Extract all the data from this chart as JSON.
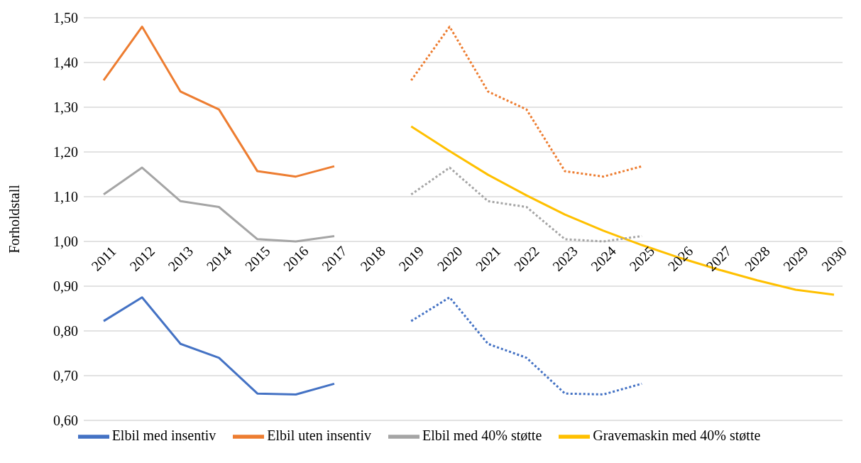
{
  "chart_data": {
    "type": "line",
    "ylabel": "Forholdstall",
    "categories": [
      "2011",
      "2012",
      "2013",
      "2014",
      "2015",
      "2016",
      "2017",
      "2018",
      "2019",
      "2020",
      "2021",
      "2022",
      "2023",
      "2024",
      "2025",
      "2026",
      "2027",
      "2028",
      "2029",
      "2030"
    ],
    "series": [
      {
        "name": "Elbil med insentiv",
        "color": "#4472c4",
        "values": [
          0.822,
          0.875,
          0.771,
          0.74,
          0.66,
          0.658,
          0.682,
          null,
          null,
          null,
          null,
          null,
          null,
          null,
          null,
          null,
          null,
          null,
          null,
          null
        ]
      },
      {
        "name": "Elbil uten insentiv",
        "color": "#ed7d31",
        "values": [
          1.36,
          1.48,
          1.335,
          1.295,
          1.157,
          1.145,
          1.168,
          null,
          null,
          null,
          null,
          null,
          null,
          null,
          null,
          null,
          null,
          null,
          null,
          null
        ]
      },
      {
        "name": "Elbil med 40% støtte",
        "color": "#a5a5a5",
        "values": [
          1.105,
          1.165,
          1.09,
          1.077,
          1.005,
          1.0,
          1.012,
          null,
          null,
          null,
          null,
          null,
          null,
          null,
          null,
          null,
          null,
          null,
          null,
          null
        ]
      },
      {
        "name": "Gravemaskin med 40% støtte",
        "color": "#ffc000",
        "values": [
          null,
          null,
          null,
          null,
          null,
          null,
          null,
          null,
          1.257,
          1.202,
          1.149,
          1.103,
          1.06,
          1.024,
          0.992,
          0.963,
          0.937,
          0.913,
          0.892,
          0.881
        ]
      },
      {
        "color": "#4472c4",
        "line_style": "dotted",
        "values": [
          null,
          null,
          null,
          null,
          null,
          null,
          null,
          null,
          0.822,
          0.875,
          0.771,
          0.74,
          0.66,
          0.658,
          0.682,
          null,
          null,
          null,
          null,
          null
        ]
      },
      {
        "color": "#ed7d31",
        "line_style": "dotted",
        "values": [
          null,
          null,
          null,
          null,
          null,
          null,
          null,
          null,
          1.36,
          1.48,
          1.335,
          1.295,
          1.157,
          1.145,
          1.168,
          null,
          null,
          null,
          null,
          null
        ]
      },
      {
        "color": "#a5a5a5",
        "line_style": "dotted",
        "values": [
          null,
          null,
          null,
          null,
          null,
          null,
          null,
          null,
          1.105,
          1.165,
          1.09,
          1.077,
          1.005,
          1.0,
          1.012,
          null,
          null,
          null,
          null,
          null
        ]
      }
    ],
    "ylim": [
      0.6,
      1.5
    ],
    "yticks": [
      {
        "value": 0.6,
        "label": "0,60"
      },
      {
        "value": 0.7,
        "label": "0,70"
      },
      {
        "value": 0.8,
        "label": "0,80"
      },
      {
        "value": 0.9,
        "label": "0,90"
      },
      {
        "value": 1.0,
        "label": "1,00"
      },
      {
        "value": 1.1,
        "label": "1,10"
      },
      {
        "value": 1.2,
        "label": "1,20"
      },
      {
        "value": 1.3,
        "label": "1,30"
      },
      {
        "value": 1.4,
        "label": "1,40"
      },
      {
        "value": 1.5,
        "label": "1,50"
      }
    ],
    "grid": "y",
    "legend": "bottom",
    "marker": "none",
    "line_style": "solid"
  }
}
